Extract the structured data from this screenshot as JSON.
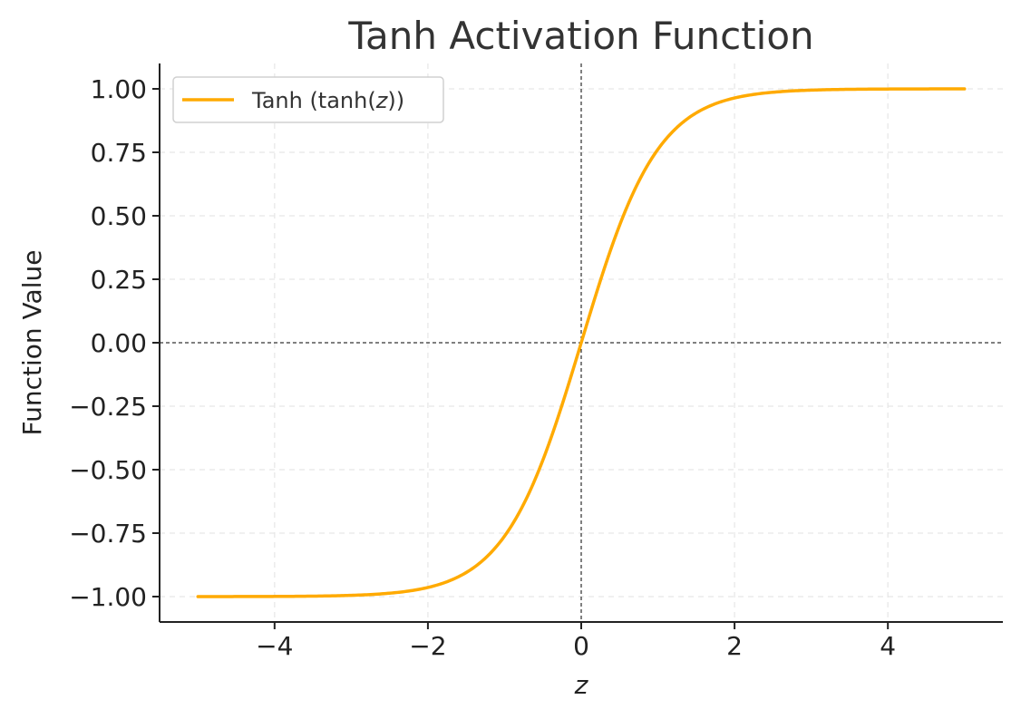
{
  "chart_data": {
    "type": "line",
    "title": "Tanh Activation Function",
    "xlabel": "z",
    "ylabel": "Function Value",
    "xlim": [
      -5.5,
      5.5
    ],
    "ylim": [
      -1.1,
      1.1
    ],
    "x_ticks": [
      -4,
      -2,
      0,
      2,
      4
    ],
    "x_tick_labels": [
      "−4",
      "−2",
      "0",
      "2",
      "4"
    ],
    "y_ticks": [
      1.0,
      0.75,
      0.5,
      0.25,
      0.0,
      -0.25,
      -0.5,
      -0.75,
      -1.0
    ],
    "y_tick_labels": [
      "1.00",
      "0.75",
      "0.50",
      "0.25",
      "0.00",
      "−0.25",
      "−0.50",
      "−0.75",
      "−1.00"
    ],
    "grid": true,
    "reference_lines": {
      "x": 0,
      "y": 0
    },
    "legend": {
      "placement": "upper-left"
    },
    "series": [
      {
        "name": "Tanh (tanh(z))",
        "function": "tanh",
        "color": "#FFAA00",
        "x": [
          -5.0,
          -4.5,
          -4.0,
          -3.5,
          -3.0,
          -2.5,
          -2.0,
          -1.5,
          -1.0,
          -0.5,
          0.0,
          0.5,
          1.0,
          1.5,
          2.0,
          2.5,
          3.0,
          3.5,
          4.0,
          4.5,
          5.0
        ],
        "values": [
          -0.9999,
          -0.9998,
          -0.9993,
          -0.9982,
          -0.9951,
          -0.9866,
          -0.964,
          -0.9051,
          -0.7616,
          -0.4621,
          0.0,
          0.4621,
          0.7616,
          0.9051,
          0.964,
          0.9866,
          0.9951,
          0.9982,
          0.9993,
          0.9998,
          0.9999
        ]
      }
    ]
  },
  "legend_label": {
    "prefix": "Tanh (tanh(",
    "variable": "z",
    "suffix": "))"
  },
  "colors": {
    "line": "#FFAA00",
    "axis": "#222222",
    "grid": "#e6e6e6",
    "reference": "#000000"
  }
}
